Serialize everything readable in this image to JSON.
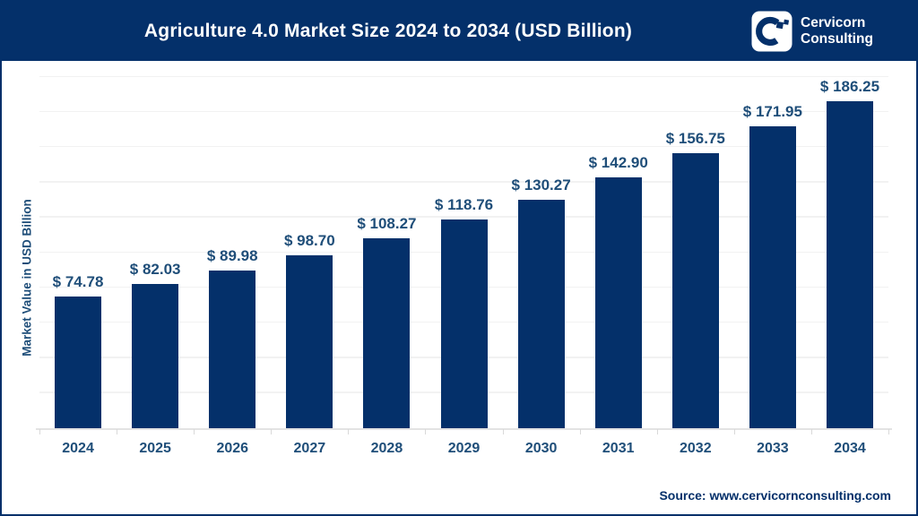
{
  "header": {
    "title": "Agriculture 4.0 Market Size 2024 to 2034 (USD Billion)",
    "brand": {
      "line1": "Cervicorn",
      "line2": "Consulting",
      "logo_icon": "cervicorn-c-icon"
    }
  },
  "chart_data": {
    "type": "bar",
    "title": "Agriculture 4.0 Market Size 2024 to 2034 (USD Billion)",
    "categories": [
      "2024",
      "2025",
      "2026",
      "2027",
      "2028",
      "2029",
      "2030",
      "2031",
      "2032",
      "2033",
      "2034"
    ],
    "values": [
      74.78,
      82.03,
      89.98,
      98.7,
      108.27,
      118.76,
      130.27,
      142.9,
      156.75,
      171.95,
      186.25
    ],
    "value_labels": [
      "$ 74.78",
      "$ 82.03",
      "$ 89.98",
      "$ 98.70",
      "$ 108.27",
      "$ 118.76",
      "$ 130.27",
      "$ 142.90",
      "$ 156.75",
      "$ 171.95",
      "$ 186.25"
    ],
    "xlabel": "",
    "ylabel": "Market Value in USD Billion",
    "ylim": [
      0,
      200
    ],
    "grid_step": 20,
    "grid": true,
    "legend_position": "none"
  },
  "footer": {
    "source": "Source: www.cervicornconsulting.com"
  },
  "colors": {
    "header_bg": "#04306A",
    "border": "#04306A",
    "bar": "#04306A",
    "data_label": "#1F4E79",
    "axis_label": "#1F4E79",
    "gridline": "#F2F2F2",
    "axis_line": "#E3E3E3",
    "title_text": "#FFFFFF",
    "background": "#FFFFFF"
  }
}
